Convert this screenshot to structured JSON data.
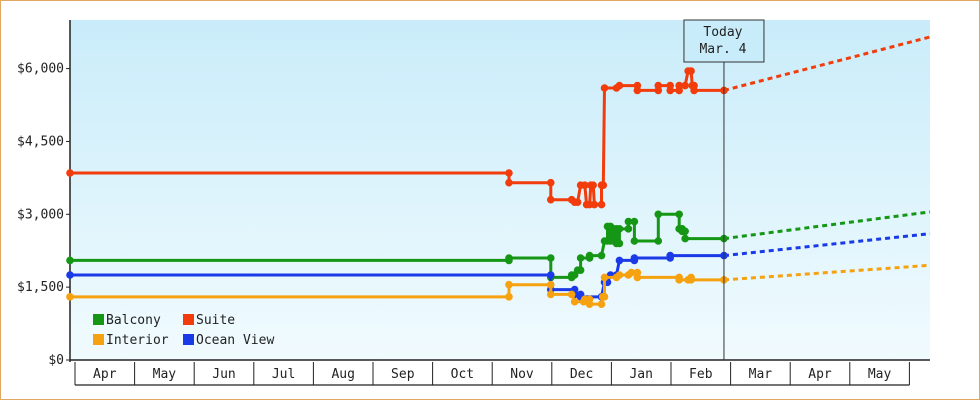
{
  "chart_data": {
    "type": "line",
    "title": "",
    "xlabel": "",
    "ylabel": "",
    "ylim": [
      0,
      7000
    ],
    "y_ticks": [
      0,
      1500,
      3000,
      4500,
      6000
    ],
    "y_tick_labels": [
      "$0",
      "$1,500",
      "$3,000",
      "$4,500",
      "$6,000"
    ],
    "x_tick_labels": [
      "Apr",
      "May",
      "Jun",
      "Jul",
      "Aug",
      "Sep",
      "Oct",
      "Nov",
      "Dec",
      "Jan",
      "Feb",
      "Mar",
      "Apr",
      "May"
    ],
    "x_range_months": [
      0,
      14.4
    ],
    "background_gradient": [
      "#c9ecfa",
      "#f1fbfe"
    ],
    "today_marker": {
      "line1": "Today",
      "line2": "Mar. 4",
      "x": 10.95
    },
    "legend": {
      "placement": "bottom-left"
    },
    "series": [
      {
        "name": "Suite",
        "color": "#f23c0b",
        "points": [
          [
            0,
            3850
          ],
          [
            7.35,
            3850
          ],
          [
            7.35,
            3650
          ],
          [
            8.05,
            3650
          ],
          [
            8.05,
            3300
          ],
          [
            8.4,
            3300
          ],
          [
            8.45,
            3250
          ],
          [
            8.5,
            3250
          ],
          [
            8.55,
            3600
          ],
          [
            8.62,
            3600
          ],
          [
            8.65,
            3200
          ],
          [
            8.7,
            3200
          ],
          [
            8.72,
            3600
          ],
          [
            8.76,
            3600
          ],
          [
            8.78,
            3200
          ],
          [
            8.9,
            3200
          ],
          [
            8.9,
            3600
          ],
          [
            8.93,
            3600
          ],
          [
            8.95,
            5600
          ],
          [
            9.15,
            5600
          ],
          [
            9.2,
            5650
          ],
          [
            9.5,
            5650
          ],
          [
            9.5,
            5550
          ],
          [
            9.85,
            5550
          ],
          [
            9.85,
            5650
          ],
          [
            10.05,
            5650
          ],
          [
            10.05,
            5550
          ],
          [
            10.2,
            5550
          ],
          [
            10.2,
            5650
          ],
          [
            10.3,
            5650
          ],
          [
            10.35,
            5950
          ],
          [
            10.4,
            5950
          ],
          [
            10.42,
            5650
          ],
          [
            10.45,
            5650
          ],
          [
            10.45,
            5550
          ],
          [
            10.95,
            5550
          ]
        ],
        "projection": [
          [
            10.95,
            5550
          ],
          [
            14.4,
            6650
          ]
        ]
      },
      {
        "name": "Balcony",
        "color": "#159615",
        "points": [
          [
            0,
            2050
          ],
          [
            7.35,
            2050
          ],
          [
            7.35,
            2100
          ],
          [
            8.05,
            2100
          ],
          [
            8.05,
            1700
          ],
          [
            8.4,
            1700
          ],
          [
            8.4,
            1750
          ],
          [
            8.45,
            1750
          ],
          [
            8.5,
            1850
          ],
          [
            8.55,
            1850
          ],
          [
            8.55,
            2100
          ],
          [
            8.7,
            2100
          ],
          [
            8.7,
            2150
          ],
          [
            8.9,
            2150
          ],
          [
            8.95,
            2450
          ],
          [
            9.0,
            2450
          ],
          [
            9.0,
            2750
          ],
          [
            9.05,
            2750
          ],
          [
            9.05,
            2450
          ],
          [
            9.1,
            2450
          ],
          [
            9.1,
            2700
          ],
          [
            9.15,
            2700
          ],
          [
            9.15,
            2400
          ],
          [
            9.2,
            2400
          ],
          [
            9.2,
            2700
          ],
          [
            9.35,
            2700
          ],
          [
            9.35,
            2850
          ],
          [
            9.45,
            2850
          ],
          [
            9.45,
            2450
          ],
          [
            9.85,
            2450
          ],
          [
            9.85,
            3000
          ],
          [
            10.2,
            3000
          ],
          [
            10.2,
            2700
          ],
          [
            10.25,
            2700
          ],
          [
            10.25,
            2650
          ],
          [
            10.3,
            2650
          ],
          [
            10.3,
            2500
          ],
          [
            10.95,
            2500
          ]
        ],
        "projection": [
          [
            10.95,
            2500
          ],
          [
            14.4,
            3050
          ]
        ]
      },
      {
        "name": "Ocean View",
        "color": "#1a3ae8",
        "points": [
          [
            0,
            1750
          ],
          [
            7.35,
            1750
          ],
          [
            7.35,
            1750
          ],
          [
            8.05,
            1750
          ],
          [
            8.05,
            1450
          ],
          [
            8.45,
            1450
          ],
          [
            8.45,
            1350
          ],
          [
            8.55,
            1350
          ],
          [
            8.55,
            1300
          ],
          [
            8.72,
            1300
          ],
          [
            8.72,
            1300
          ],
          [
            8.9,
            1300
          ],
          [
            8.95,
            1600
          ],
          [
            9.0,
            1600
          ],
          [
            9.05,
            1750
          ],
          [
            9.15,
            1750
          ],
          [
            9.2,
            2050
          ],
          [
            9.45,
            2050
          ],
          [
            9.45,
            2100
          ],
          [
            10.05,
            2100
          ],
          [
            10.05,
            2150
          ],
          [
            10.2,
            2150
          ],
          [
            10.2,
            2150
          ],
          [
            10.3,
            2150
          ],
          [
            10.3,
            2150
          ],
          [
            10.95,
            2150
          ]
        ],
        "projection": [
          [
            10.95,
            2150
          ],
          [
            14.4,
            2600
          ]
        ]
      },
      {
        "name": "Interior",
        "color": "#f6a10f",
        "points": [
          [
            0,
            1300
          ],
          [
            7.35,
            1300
          ],
          [
            7.35,
            1550
          ],
          [
            8.05,
            1550
          ],
          [
            8.05,
            1350
          ],
          [
            8.4,
            1350
          ],
          [
            8.45,
            1200
          ],
          [
            8.6,
            1200
          ],
          [
            8.62,
            1250
          ],
          [
            8.7,
            1250
          ],
          [
            8.7,
            1150
          ],
          [
            8.9,
            1150
          ],
          [
            8.92,
            1300
          ],
          [
            8.95,
            1300
          ],
          [
            8.95,
            1700
          ],
          [
            9.15,
            1700
          ],
          [
            9.2,
            1750
          ],
          [
            9.35,
            1750
          ],
          [
            9.4,
            1800
          ],
          [
            9.5,
            1800
          ],
          [
            9.5,
            1700
          ],
          [
            10.2,
            1700
          ],
          [
            10.2,
            1650
          ],
          [
            10.3,
            1650
          ],
          [
            10.35,
            1650
          ],
          [
            10.4,
            1700
          ],
          [
            10.4,
            1650
          ],
          [
            10.95,
            1650
          ]
        ],
        "projection": [
          [
            10.95,
            1650
          ],
          [
            14.4,
            1950
          ]
        ]
      }
    ],
    "legend_order": [
      "Balcony",
      "Suite",
      "Interior",
      "Ocean View"
    ]
  }
}
